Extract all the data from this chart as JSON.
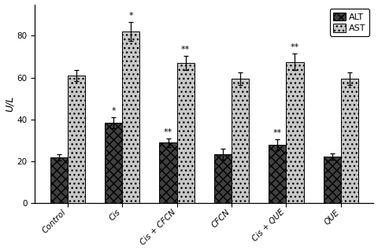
{
  "categories": [
    "Control",
    "Cis",
    "Cis + CFCN",
    "CFCN",
    "Cis + QUE",
    "QUE"
  ],
  "ALT_values": [
    22,
    38.5,
    29,
    23.5,
    28,
    22.5
  ],
  "AST_values": [
    61,
    82,
    67,
    59.5,
    67.5,
    59.5
  ],
  "ALT_errors": [
    1.5,
    2.5,
    2.0,
    2.5,
    2.5,
    1.5
  ],
  "AST_errors": [
    2.5,
    4.5,
    3.5,
    3.0,
    4.0,
    3.0
  ],
  "ALT_annotations": [
    "",
    "*",
    "**",
    "",
    "**",
    ""
  ],
  "AST_annotations": [
    "",
    "*",
    "**",
    "",
    "**",
    ""
  ],
  "ylabel": "U/L",
  "ylim": [
    0,
    95
  ],
  "yticks": [
    0,
    20,
    40,
    60,
    80
  ],
  "bar_width": 0.32,
  "ALT_color": "#404040",
  "AST_color": "#c8c8c8",
  "ALT_hatch": "xxx",
  "AST_hatch": "...",
  "background_color": "#ffffff",
  "annotation_fontsize": 8,
  "label_fontsize": 9,
  "tick_fontsize": 7.5,
  "legend_fontsize": 8
}
